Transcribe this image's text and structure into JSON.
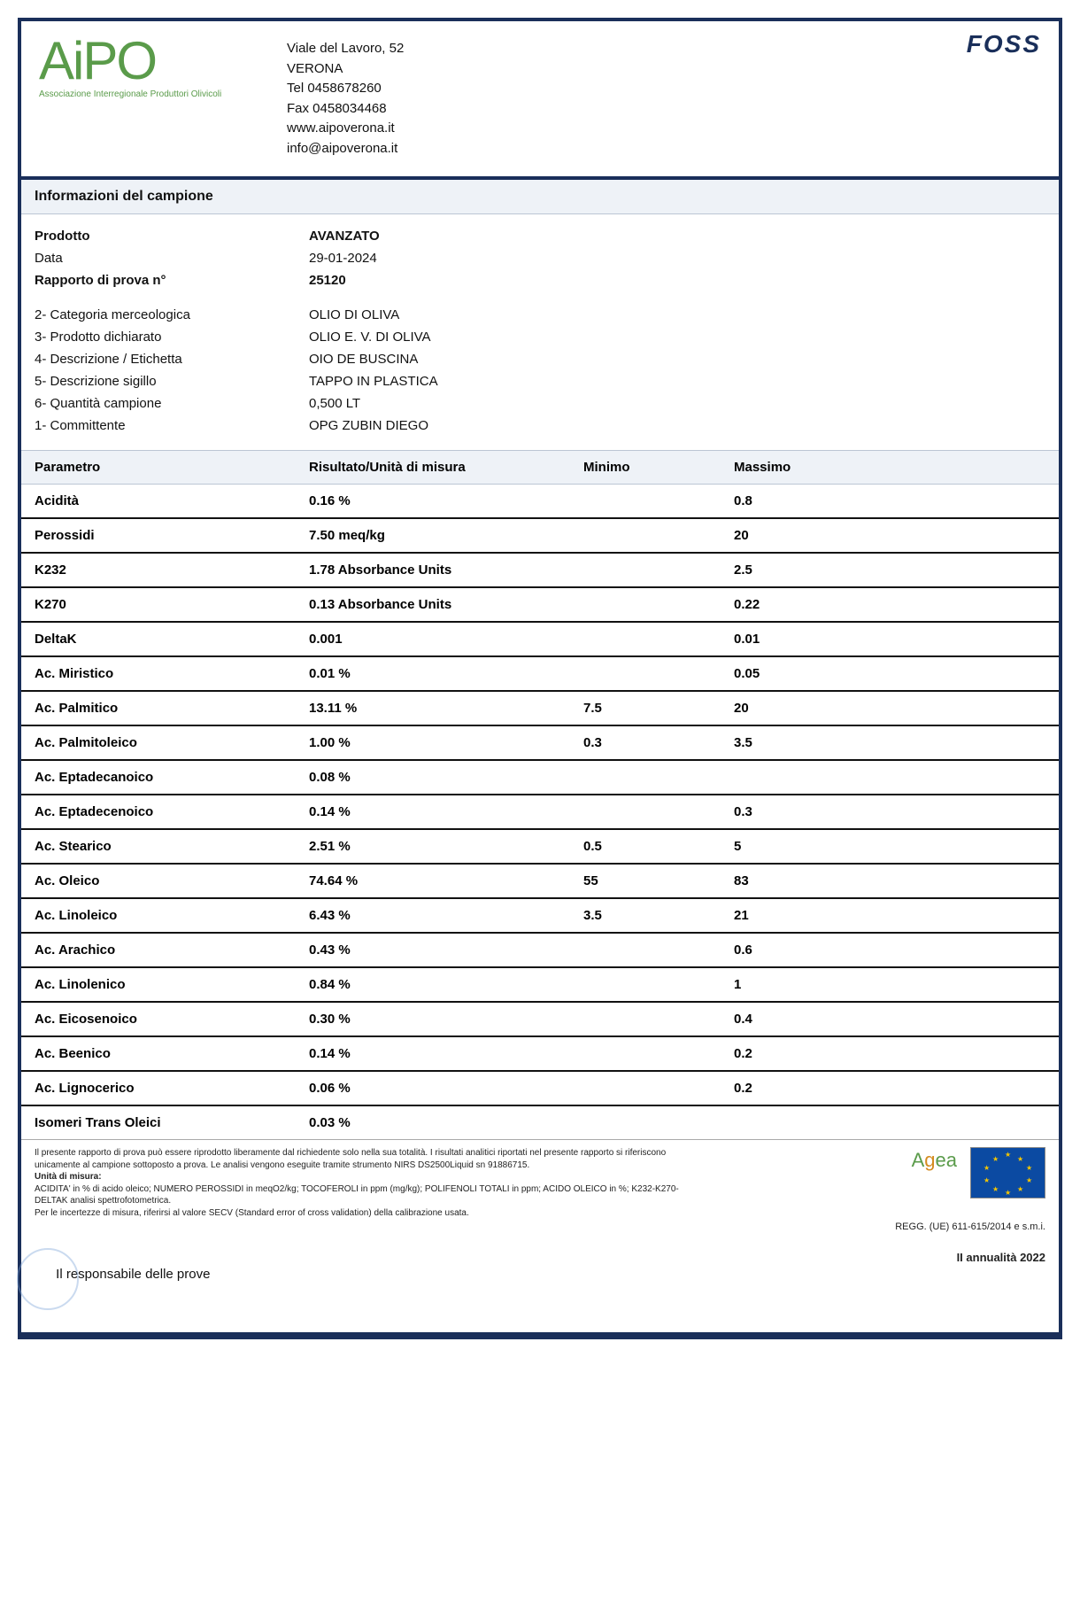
{
  "header": {
    "logo_main": "AiPO",
    "logo_sub": "Associazione Interregionale Produttori Olivicoli",
    "address_line1": "Viale del Lavoro, 52",
    "address_line2": "VERONA",
    "tel": "Tel 0458678260",
    "fax": "Fax 0458034468",
    "web": "www.aipoverona.it",
    "email": "info@aipoverona.it",
    "brand": "FOSS"
  },
  "info": {
    "section_title": "Informazioni del campione",
    "rows_top": [
      {
        "label": "Prodotto",
        "value": "AVANZATO",
        "bold": true
      },
      {
        "label": "Data",
        "value": "29-01-2024",
        "bold": false
      },
      {
        "label": "Rapporto di prova n°",
        "value": "25120",
        "bold": true
      }
    ],
    "rows_bottom": [
      {
        "label": "2- Categoria merceologica",
        "value": "OLIO DI OLIVA"
      },
      {
        "label": "3- Prodotto dichiarato",
        "value": "OLIO E. V. DI OLIVA"
      },
      {
        "label": "4- Descrizione / Etichetta",
        "value": "OIO DE BUSCINA"
      },
      {
        "label": "5- Descrizione sigillo",
        "value": "TAPPO IN PLASTICA"
      },
      {
        "label": "6- Quantità campione",
        "value": "0,500 LT"
      },
      {
        "label": "1- Committente",
        "value": "OPG ZUBIN DIEGO"
      }
    ]
  },
  "table": {
    "columns": [
      "Parametro",
      "Risultato/Unità di misura",
      "Minimo",
      "Massimo"
    ],
    "rows": [
      {
        "param": "Acidità",
        "result": "0.16 %",
        "min": "",
        "max": "0.8"
      },
      {
        "param": "Perossidi",
        "result": "7.50 meq/kg",
        "min": "",
        "max": "20"
      },
      {
        "param": "K232",
        "result": "1.78 Absorbance Units",
        "min": "",
        "max": "2.5"
      },
      {
        "param": "K270",
        "result": "0.13 Absorbance Units",
        "min": "",
        "max": "0.22"
      },
      {
        "param": "DeltaK",
        "result": "0.001",
        "min": "",
        "max": "0.01"
      },
      {
        "param": "Ac. Miristico",
        "result": "0.01 %",
        "min": "",
        "max": "0.05"
      },
      {
        "param": "Ac. Palmitico",
        "result": "13.11 %",
        "min": "7.5",
        "max": "20"
      },
      {
        "param": "Ac. Palmitoleico",
        "result": "1.00 %",
        "min": "0.3",
        "max": "3.5"
      },
      {
        "param": "Ac. Eptadecanoico",
        "result": "0.08 %",
        "min": "",
        "max": ""
      },
      {
        "param": "Ac. Eptadecenoico",
        "result": "0.14 %",
        "min": "",
        "max": "0.3"
      },
      {
        "param": "Ac. Stearico",
        "result": "2.51 %",
        "min": "0.5",
        "max": "5"
      },
      {
        "param": "Ac. Oleico",
        "result": "74.64 %",
        "min": "55",
        "max": "83"
      },
      {
        "param": "Ac. Linoleico",
        "result": "6.43 %",
        "min": "3.5",
        "max": "21"
      },
      {
        "param": "Ac. Arachico",
        "result": "0.43 %",
        "min": "",
        "max": "0.6"
      },
      {
        "param": "Ac. Linolenico",
        "result": "0.84 %",
        "min": "",
        "max": "1"
      },
      {
        "param": "Ac. Eicosenoico",
        "result": "0.30 %",
        "min": "",
        "max": "0.4"
      },
      {
        "param": "Ac. Beenico",
        "result": "0.14 %",
        "min": "",
        "max": "0.2"
      },
      {
        "param": "Ac. Lignocerico",
        "result": "0.06 %",
        "min": "",
        "max": "0.2"
      },
      {
        "param": "Isomeri Trans Oleici",
        "result": "0.03 %",
        "min": "",
        "max": "",
        "last": true
      }
    ]
  },
  "footer": {
    "disclaimer1": "Il presente rapporto di prova può essere riprodotto liberamente dal richiedente solo nella sua totalità. I risultati analitici riportati nel presente rapporto si riferiscono unicamente al campione sottoposto a prova. Le analisi vengono eseguite tramite strumento NIRS DS2500Liquid sn 91886715.",
    "unit_label": "Unità di misura:",
    "disclaimer2": "ACIDITA' in % di acido oleico; NUMERO PEROSSIDI in meqO2/kg; TOCOFEROLI in ppm (mg/kg); POLIFENOLI TOTALI in ppm; ACIDO OLEICO in %; K232-K270-DELTAK analisi spettrofotometrica.",
    "disclaimer3": "Per le incertezze di misura, riferirsi al valore SECV (Standard error of cross validation) della calibrazione usata.",
    "responsible": "Il responsabile delle prove",
    "agea": "Agea",
    "regg": "REGG. (UE) 611-615/2014 e s.m.i.",
    "annualita": "II annualità 2022"
  }
}
